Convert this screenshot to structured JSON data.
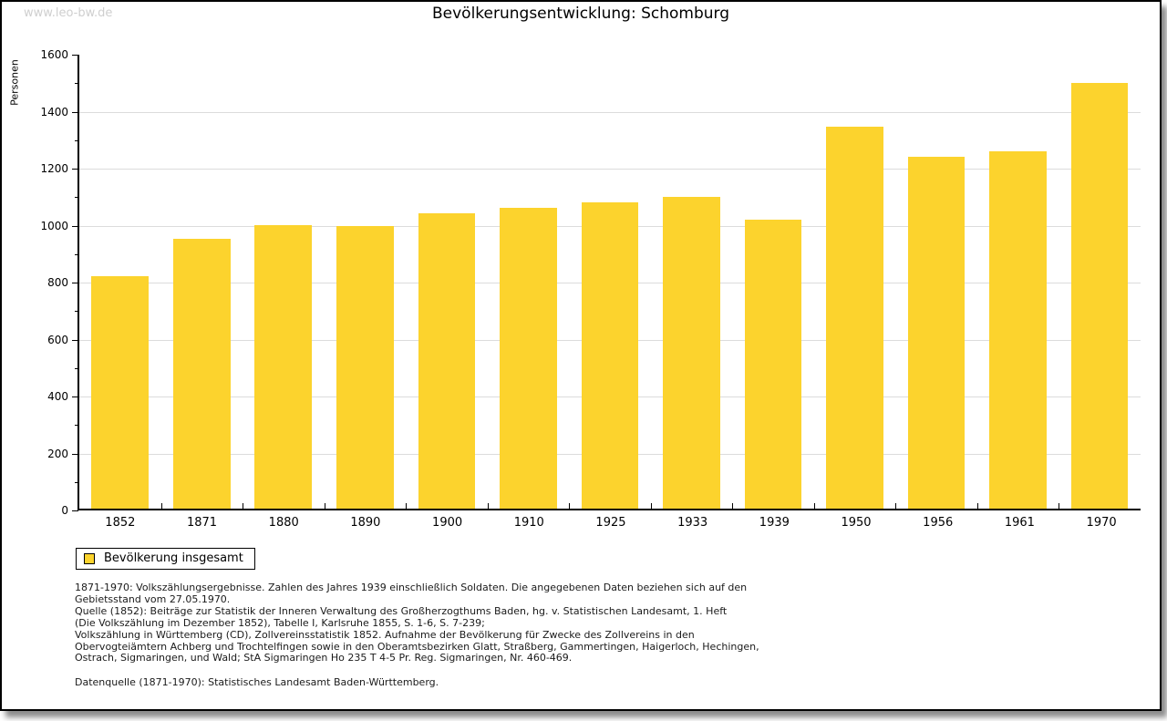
{
  "page": {
    "watermark": "www.leo-bw.de",
    "title": "Bevölkerungsentwicklung: Schomburg"
  },
  "chart_data": {
    "type": "bar",
    "title": "Bevölkerungsentwicklung: Schomburg",
    "xlabel": "",
    "ylabel": "Personen",
    "ylim": [
      0,
      1600
    ],
    "ytick_interval": 200,
    "ytick_minor_interval": 100,
    "grid": true,
    "legend_position": "bottom-left",
    "bar_color": "#fcd32d",
    "categories": [
      "1852",
      "1871",
      "1880",
      "1890",
      "1900",
      "1910",
      "1925",
      "1933",
      "1939",
      "1950",
      "1956",
      "1961",
      "1970"
    ],
    "series": [
      {
        "name": "Bevölkerung insgesamt",
        "values": [
          820,
          950,
          1000,
          995,
          1040,
          1060,
          1080,
          1100,
          1020,
          1345,
          1240,
          1260,
          1500
        ]
      }
    ]
  },
  "legend": {
    "label": "Bevölkerung insgesamt",
    "swatch_color": "#fcd32d"
  },
  "footnotes": {
    "lines": [
      "1871-1970: Volkszählungsergebnisse. Zahlen des Jahres 1939 einschließlich Soldaten. Die angegebenen Daten beziehen sich auf den",
      "Gebietsstand vom 27.05.1970.",
      "Quelle (1852): Beiträge zur Statistik der Inneren Verwaltung des Großherzogthums Baden, hg. v. Statistischen Landesamt, 1. Heft",
      "(Die Volkszählung im Dezember 1852), Tabelle I, Karlsruhe 1855, S. 1-6, S. 7-239;",
      "Volkszählung in Württemberg (CD), Zollvereinsstatistik 1852. Aufnahme der Bevölkerung für Zwecke des Zollvereins in den",
      "Obervogteiämtern Achberg und Trochtelfingen sowie in den Oberamtsbezirken Glatt, Straßberg, Gammertingen, Haigerloch, Hechingen,",
      "Ostrach, Sigmaringen, und Wald; StA Sigmaringen Ho 235 T 4-5 Pr. Reg. Sigmaringen, Nr. 460-469."
    ],
    "datasource": "Datenquelle (1871-1970): Statistisches Landesamt Baden-Württemberg."
  }
}
